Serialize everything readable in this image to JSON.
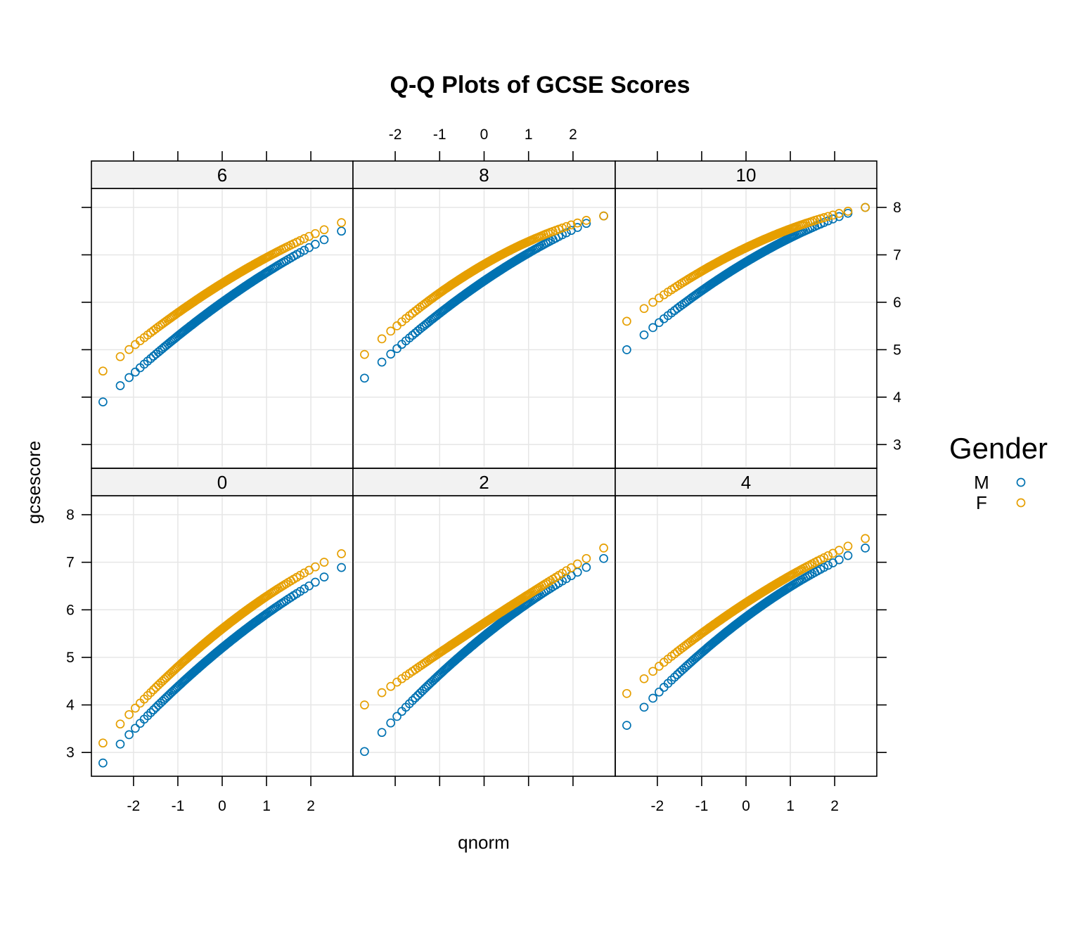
{
  "chart_data": {
    "type": "scatter",
    "title": "Q-Q Plots of GCSE Scores",
    "xlabel": "qnorm",
    "ylabel": "gcsescore",
    "xlim": [
      -2.95,
      2.95
    ],
    "ylim": [
      2.5,
      8.4
    ],
    "x_ticks": [
      -2,
      -1,
      0,
      1,
      2
    ],
    "y_ticks": [
      3,
      4,
      5,
      6,
      7,
      8
    ],
    "grid": true,
    "legend": {
      "title": "Gender",
      "placement": "right",
      "entries": [
        {
          "label": "M",
          "color": "#0072b2"
        },
        {
          "label": "F",
          "color": "#e69f00"
        }
      ]
    },
    "layout": {
      "columns": 3,
      "rows": 2
    },
    "panels": [
      {
        "label": "0",
        "row": 2,
        "col": 1,
        "series": [
          {
            "name": "M",
            "low": 2.78,
            "mid": 5.2,
            "high": 6.89
          },
          {
            "name": "F",
            "low": 3.2,
            "mid": 5.6,
            "high": 7.18
          }
        ]
      },
      {
        "label": "2",
        "row": 2,
        "col": 2,
        "series": [
          {
            "name": "M",
            "low": 3.02,
            "mid": 5.45,
            "high": 7.08
          },
          {
            "name": "F",
            "low": 4.0,
            "mid": 5.72,
            "high": 7.3
          }
        ]
      },
      {
        "label": "4",
        "row": 2,
        "col": 3,
        "series": [
          {
            "name": "M",
            "low": 3.57,
            "mid": 5.85,
            "high": 7.3
          },
          {
            "name": "F",
            "low": 4.24,
            "mid": 6.15,
            "high": 7.5
          }
        ]
      },
      {
        "label": "6",
        "row": 1,
        "col": 1,
        "series": [
          {
            "name": "M",
            "low": 3.9,
            "mid": 6.0,
            "high": 7.5
          },
          {
            "name": "F",
            "low": 4.55,
            "mid": 6.4,
            "high": 7.68
          }
        ]
      },
      {
        "label": "8",
        "row": 1,
        "col": 2,
        "series": [
          {
            "name": "M",
            "low": 4.4,
            "mid": 6.45,
            "high": 7.82
          },
          {
            "name": "F",
            "low": 4.9,
            "mid": 6.8,
            "high": 7.82
          }
        ]
      },
      {
        "label": "10",
        "row": 1,
        "col": 3,
        "series": [
          {
            "name": "M",
            "low": 5.0,
            "mid": 6.85,
            "high": 8.0
          },
          {
            "name": "F",
            "low": 5.6,
            "mid": 7.15,
            "high": 8.0
          }
        ]
      }
    ]
  }
}
